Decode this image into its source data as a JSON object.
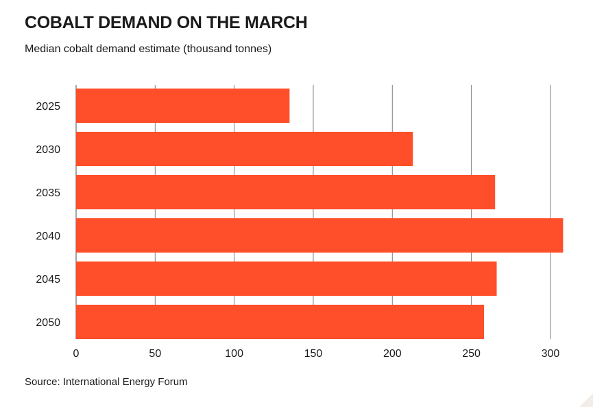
{
  "header": {
    "title": "COBALT DEMAND ON THE MARCH",
    "subtitle": "Median cobalt demand estimate (thousand tonnes)"
  },
  "footer": {
    "source": "Source: International Energy Forum"
  },
  "chart_data": {
    "type": "bar",
    "orientation": "horizontal",
    "title": "COBALT DEMAND ON THE MARCH",
    "subtitle": "Median cobalt demand estimate (thousand tonnes)",
    "categories": [
      "2025",
      "2030",
      "2035",
      "2040",
      "2045",
      "2050"
    ],
    "values": [
      135,
      213,
      265,
      308,
      266,
      258
    ],
    "xlim": [
      0,
      310
    ],
    "xticks": [
      0,
      50,
      100,
      150,
      200,
      250,
      300
    ],
    "xlabel": "",
    "ylabel": "",
    "grid": "vertical",
    "legend": "none",
    "bar_color": "#ff4e2a",
    "grid_color": "#7f7f7f"
  }
}
